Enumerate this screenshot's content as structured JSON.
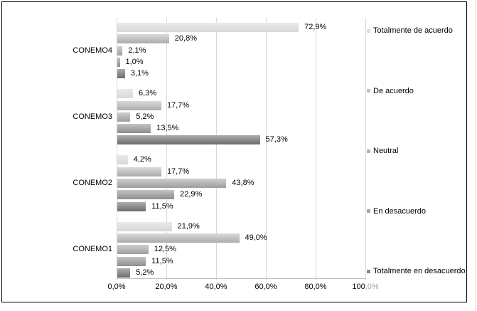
{
  "chart_data": {
    "type": "bar",
    "orientation": "horizontal",
    "title": "",
    "xlabel": "",
    "ylabel": "",
    "grid": "vertical-on",
    "legend_position": "right",
    "categories": [
      "CONEMO4",
      "CONEMO3",
      "CONEMO2",
      "CONEMO1"
    ],
    "series": [
      {
        "name": "Totalmente de acuerdo",
        "values": [
          72.9,
          6.3,
          4.2,
          21.9
        ],
        "labels": [
          "72,9%",
          "6,3%",
          "4,2%",
          "21,9%"
        ],
        "gradient_top": "#eaeaea",
        "gradient_bottom": "#d8d8d8",
        "legend_color": "#dcdcdc"
      },
      {
        "name": "De acuerdo",
        "values": [
          20.8,
          17.7,
          17.7,
          49.0
        ],
        "labels": [
          "20,8%",
          "17,7%",
          "17,7%",
          "49,0%"
        ],
        "gradient_top": "#dadada",
        "gradient_bottom": "#ababab",
        "legend_color": "#c0c0c0"
      },
      {
        "name": "Neutral",
        "values": [
          2.1,
          5.2,
          43.8,
          12.5
        ],
        "labels": [
          "2,1%",
          "5,2%",
          "43,8%",
          "12,5%"
        ],
        "gradient_top": "#cecece",
        "gradient_bottom": "#9e9e9e",
        "legend_color": "#b3b3b3"
      },
      {
        "name": "En desacuerdo",
        "values": [
          1.0,
          13.5,
          22.9,
          11.5
        ],
        "labels": [
          "1,0%",
          "13,5%",
          "22,9%",
          "11,5%"
        ],
        "gradient_top": "#c3c3c3",
        "gradient_bottom": "#8e8e8e",
        "legend_color": "#a6a6a6"
      },
      {
        "name": "Totalmente en desacuerdo",
        "values": [
          3.1,
          57.3,
          11.5,
          5.2
        ],
        "labels": [
          "3,1%",
          "57,3%",
          "11,5%",
          "5,2%"
        ],
        "gradient_top": "#aeaeae",
        "gradient_bottom": "#6c6c6c",
        "legend_color": "#8a8a8a"
      }
    ],
    "x_axis": {
      "min": 0,
      "max": 100,
      "step": 20,
      "ticks": [
        {
          "text": "0,0%",
          "muted": ""
        },
        {
          "text": "20,0%",
          "muted": ""
        },
        {
          "text": "40,0%",
          "muted": ""
        },
        {
          "text": "60,0%",
          "muted": ""
        },
        {
          "text": "80,0%",
          "muted": ""
        },
        {
          "text": "100",
          "muted": ",0%"
        }
      ]
    },
    "colors": {
      "frame_border": "#000000",
      "gridline": "#d9d9d9",
      "axis_line": "#bfbfbf",
      "text": "#000000",
      "muted_tick_text": "#a6a6a6",
      "background": "#ffffff"
    }
  }
}
